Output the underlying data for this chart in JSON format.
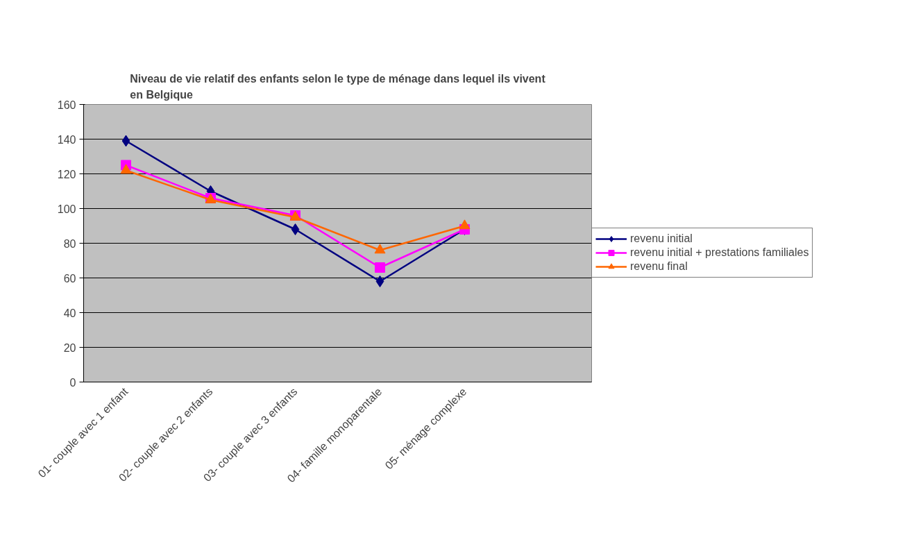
{
  "chart_data": {
    "type": "line",
    "title": "Niveau de vie relatif des enfants selon le type de ménage dans lequel ils vivent\nen Belgique",
    "categories": [
      "01- couple avec 1 enfant",
      "02- couple avec 2 enfants",
      "03- couple avec 3 enfants",
      "04- famille monoparentale",
      "05- ménage complexe",
      null
    ],
    "series": [
      {
        "name": "revenu initial",
        "color": "#000080",
        "marker": "diamond",
        "values": [
          139,
          110,
          88,
          58,
          88,
          null
        ]
      },
      {
        "name": "revenu initial + prestations familiales",
        "color": "#ff00ff",
        "marker": "square",
        "values": [
          125,
          106,
          96,
          66,
          88,
          null
        ]
      },
      {
        "name": "revenu final",
        "color": "#ff6600",
        "marker": "triangle",
        "values": [
          122,
          105,
          95,
          76,
          90,
          null
        ]
      }
    ],
    "ylim": [
      0,
      160
    ],
    "yticks": [
      0,
      20,
      40,
      60,
      80,
      100,
      120,
      140,
      160
    ],
    "grid": "y",
    "legend": "right"
  }
}
